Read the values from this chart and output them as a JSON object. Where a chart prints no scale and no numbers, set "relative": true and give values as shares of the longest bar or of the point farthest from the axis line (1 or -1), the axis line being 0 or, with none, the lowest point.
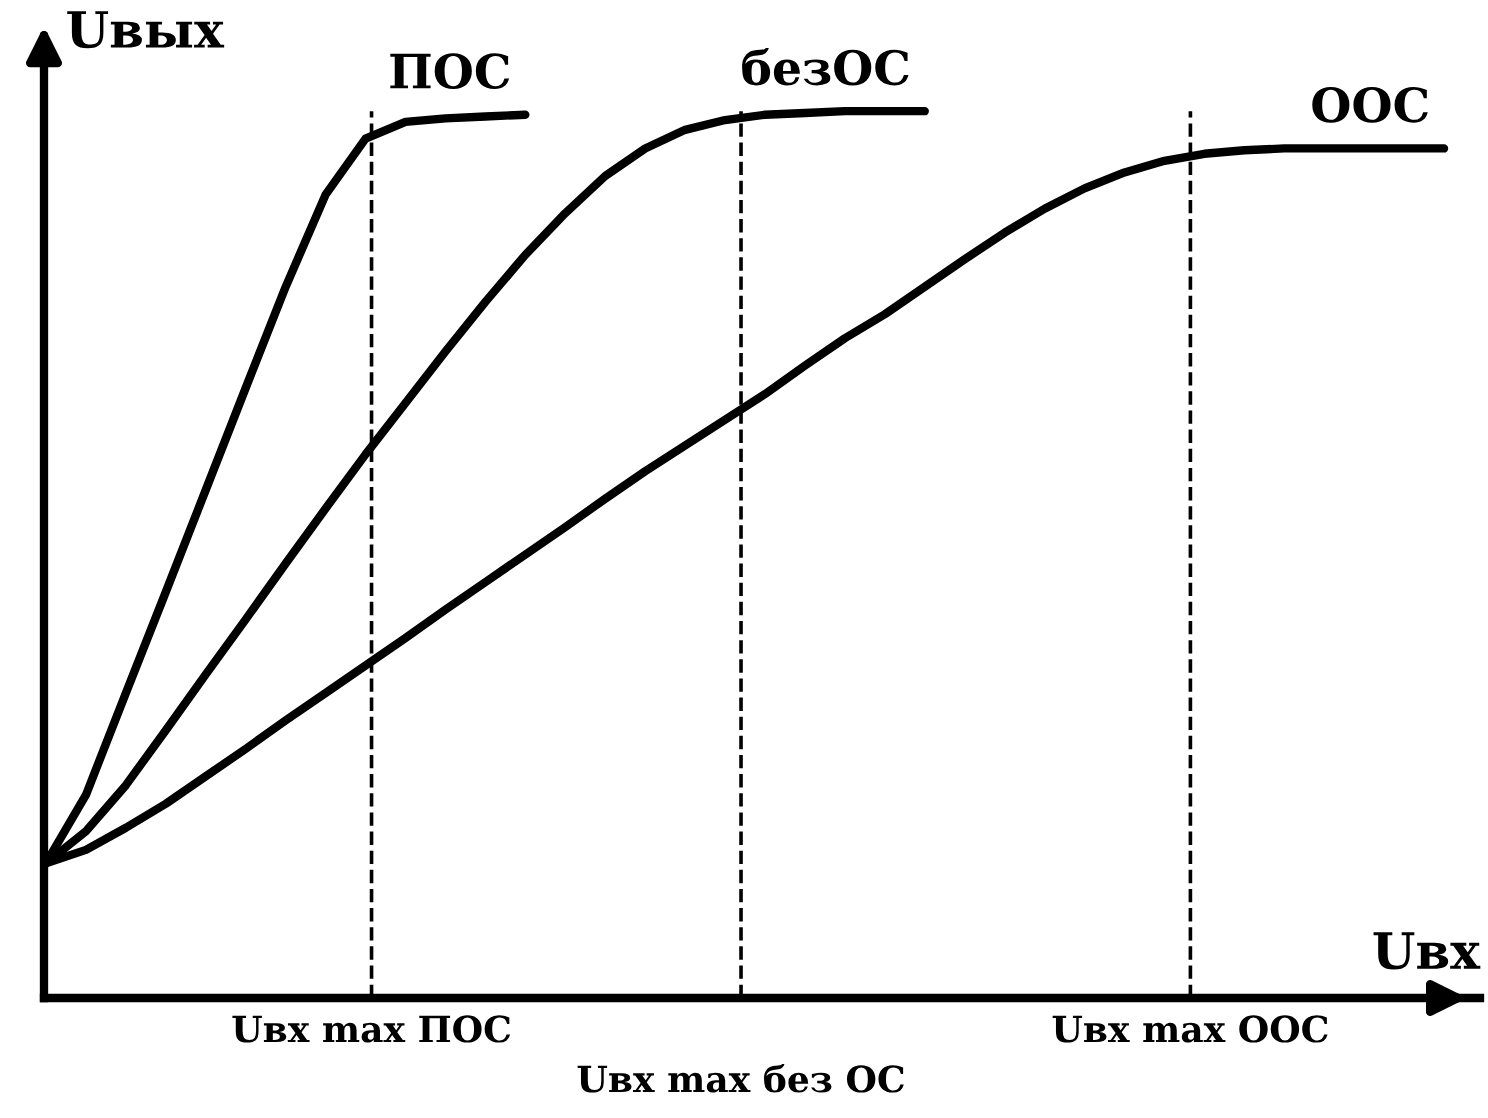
{
  "chart_data": {
    "type": "line",
    "relative": true,
    "xlabel": "Uвх",
    "ylabel": "Uвых",
    "categories": [
      null,
      null,
      null,
      null,
      null,
      null,
      null,
      null,
      null,
      null,
      null,
      null,
      null,
      null,
      null,
      null,
      null,
      null,
      null,
      null,
      null,
      null,
      null,
      null,
      null,
      null,
      null,
      null,
      null,
      null,
      null,
      null,
      null,
      null,
      null,
      null
    ],
    "series": [
      {
        "name": "ПОС",
        "color": "#000000",
        "values": [
          0.152,
          0.229,
          0.344,
          0.458,
          0.573,
          0.688,
          0.802,
          0.906,
          0.969,
          0.988,
          0.992,
          0.994,
          0.996,
          null,
          null,
          null,
          null,
          null,
          null,
          null,
          null,
          null,
          null,
          null,
          null,
          null,
          null,
          null,
          null,
          null,
          null,
          null,
          null,
          null,
          null,
          null
        ]
      },
      {
        "name": "безОС",
        "color": "#000000",
        "values": [
          0.152,
          0.188,
          0.24,
          0.302,
          0.365,
          0.427,
          0.49,
          0.552,
          0.613,
          0.671,
          0.729,
          0.785,
          0.838,
          0.885,
          0.927,
          0.958,
          0.979,
          0.99,
          0.996,
          0.998,
          1.0,
          1.0,
          1.0,
          null,
          null,
          null,
          null,
          null,
          null,
          null,
          null,
          null,
          null,
          null,
          null,
          null
        ]
      },
      {
        "name": "ООС",
        "color": "#000000",
        "values": [
          0.152,
          0.167,
          0.192,
          0.219,
          0.25,
          0.281,
          0.313,
          0.344,
          0.375,
          0.406,
          0.438,
          0.469,
          0.5,
          0.531,
          0.563,
          0.594,
          0.623,
          0.652,
          0.681,
          0.713,
          0.744,
          0.771,
          0.802,
          0.833,
          0.863,
          0.89,
          0.913,
          0.931,
          0.944,
          0.952,
          0.956,
          0.958,
          0.958,
          0.958,
          0.958,
          0.958
        ]
      }
    ],
    "annotations": [
      "Uвх max ПОС",
      "Uвх max без ОС",
      "Uвх max ООС"
    ],
    "grid": false,
    "legend": false,
    "marker": "none",
    "line_style": "solid"
  }
}
